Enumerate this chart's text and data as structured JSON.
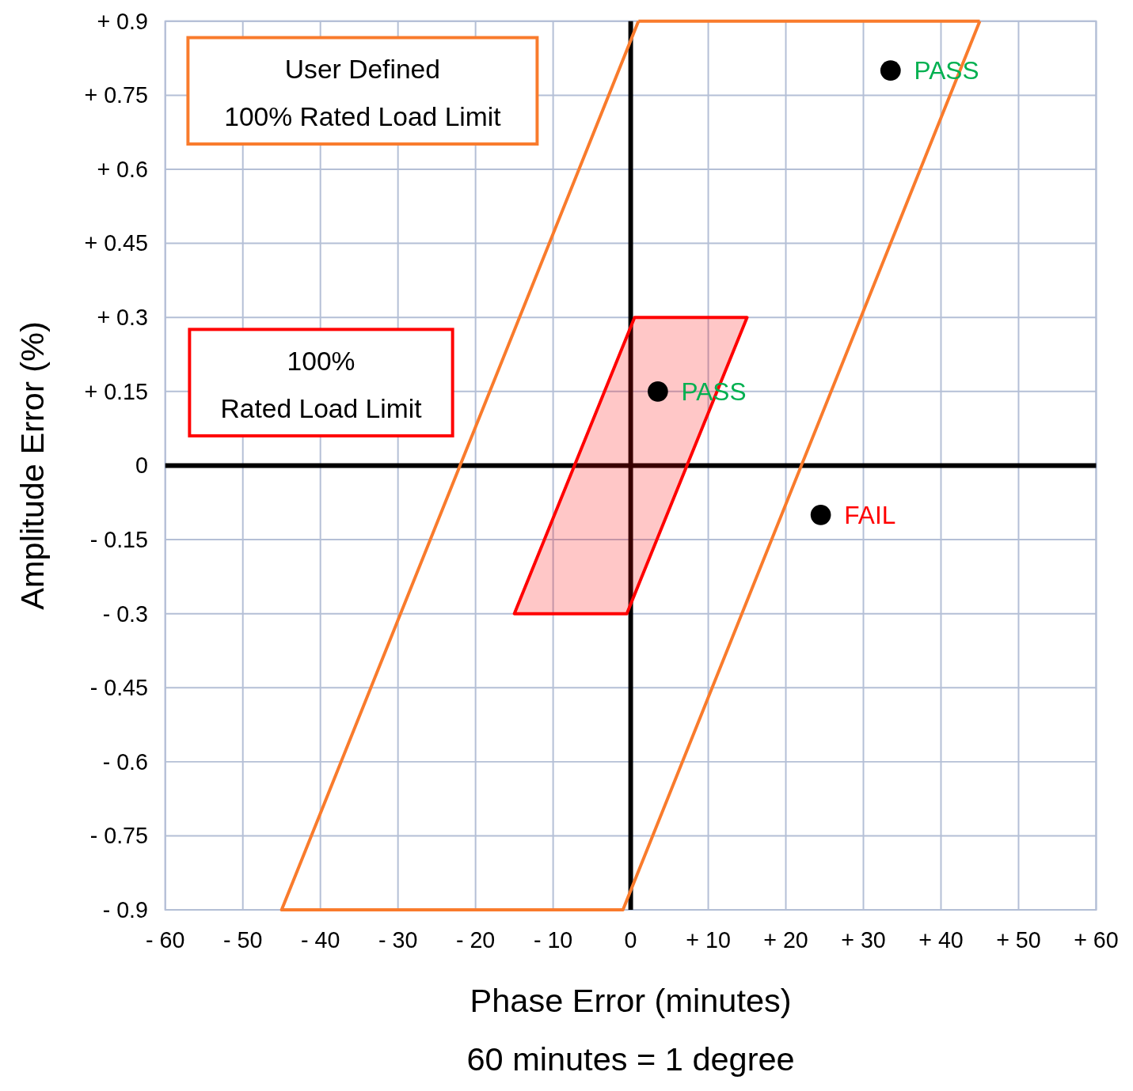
{
  "chart_data": {
    "type": "line",
    "xlabel": "Phase Error (minutes)",
    "ylabel": "Amplitude Error  (%)",
    "xlim": [
      -60,
      60
    ],
    "ylim": [
      -0.9,
      0.9
    ],
    "xticks": [
      {
        "value": -60,
        "label": "- 60"
      },
      {
        "value": -50,
        "label": "- 50"
      },
      {
        "value": -40,
        "label": "- 40"
      },
      {
        "value": -30,
        "label": "- 30"
      },
      {
        "value": -20,
        "label": "- 20"
      },
      {
        "value": -10,
        "label": "- 10"
      },
      0,
      {
        "value": 10,
        "label": "+ 10"
      },
      {
        "value": 20,
        "label": "+ 20"
      },
      {
        "value": 30,
        "label": "+ 30"
      },
      {
        "value": 40,
        "label": "+ 40"
      },
      {
        "value": 50,
        "label": "+ 50"
      },
      {
        "value": 60,
        "label": "+ 60"
      }
    ],
    "yticks": [
      {
        "value": -0.9,
        "label": "- 0.9"
      },
      {
        "value": -0.75,
        "label": "- 0.75"
      },
      {
        "value": -0.6,
        "label": "- 0.6"
      },
      {
        "value": -0.45,
        "label": "- 0.45"
      },
      {
        "value": -0.3,
        "label": "- 0.3"
      },
      {
        "value": -0.15,
        "label": "- 0.15"
      },
      0,
      {
        "value": 0.15,
        "label": "+ 0.15"
      },
      {
        "value": 0.3,
        "label": "+ 0.3"
      },
      {
        "value": 0.45,
        "label": "+ 0.45"
      },
      {
        "value": 0.6,
        "label": "+ 0.6"
      },
      {
        "value": 0.75,
        "label": "+ 0.75"
      },
      {
        "value": 0.9,
        "label": "+ 0.9"
      }
    ],
    "grid": true,
    "series": [
      {
        "color": "#f97b2c",
        "x": [
          1,
          -45,
          -1,
          45
        ],
        "values": [
          0.9,
          -0.9,
          -0.9,
          0.9
        ]
      },
      {
        "color": "#f97b2c",
        "x": [
          1,
          45
        ],
        "values": [
          0.9,
          0.9
        ]
      },
      {
        "type": "area",
        "color": "#ff0000",
        "x": [
          -15,
          -0.5,
          15,
          0.5,
          -15
        ],
        "values": [
          -0.3,
          -0.3,
          0.3,
          0.3,
          -0.3
        ]
      },
      {
        "type": "scatter",
        "color": "#000000",
        "marker": "circle",
        "x": [
          33.5,
          3.5,
          24.5
        ],
        "values": [
          0.8,
          0.15,
          -0.1
        ]
      }
    ],
    "annotations": [
      {
        "text": "PASS",
        "x": 33.5,
        "y": 0.8
      },
      {
        "text": "PASS",
        "x": 3.5,
        "y": 0.15
      },
      {
        "text": "FAIL",
        "x": 24.5,
        "y": -0.1
      },
      "User Defined\n100% Rated Load Limit",
      "100%\nRated Load Limit",
      "60 minutes = 1 degree"
    ]
  }
}
